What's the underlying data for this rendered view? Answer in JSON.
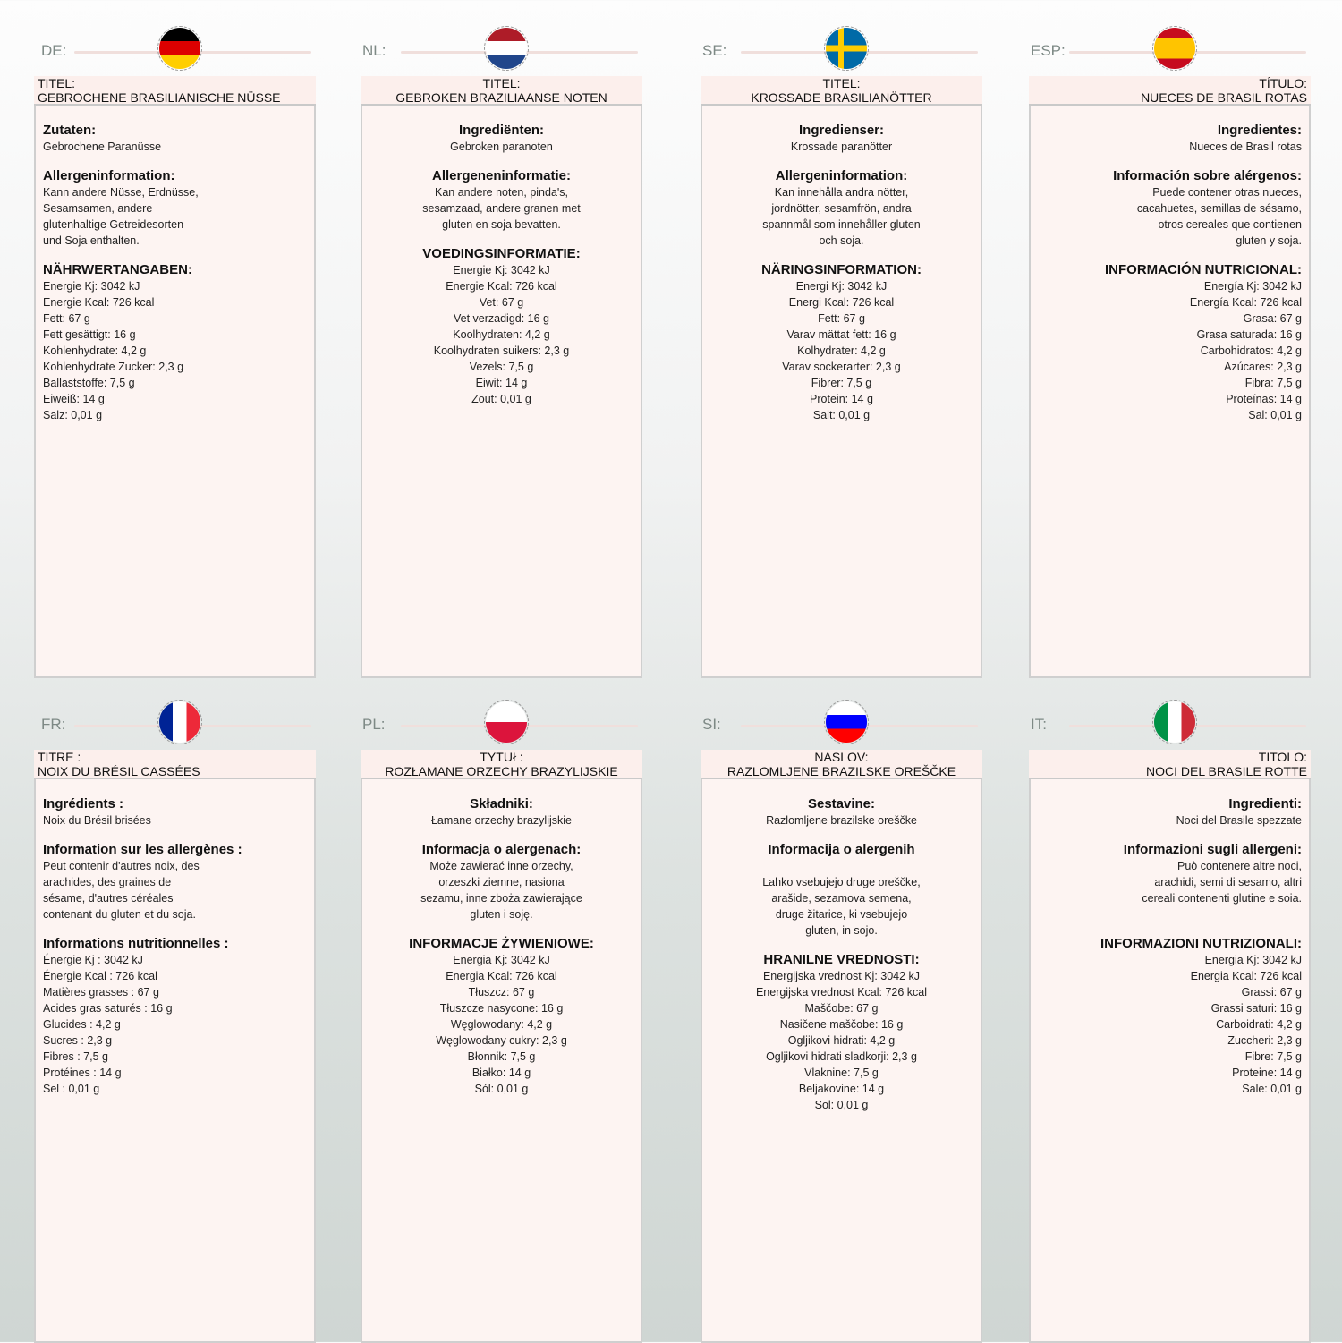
{
  "panels": [
    {
      "code": "DE:",
      "flag": "de",
      "align": "left",
      "title_label": "TITEL:",
      "title": "GEBROCHENE BRASILIANISCHE NÜSSE",
      "sections": [
        {
          "heading": "Zutaten:",
          "lines": [
            "Gebrochene Paranüsse"
          ]
        },
        {
          "heading": "Allergeninformation:",
          "lines": [
            "Kann andere Nüsse, Erdnüsse,",
            "Sesamsamen, andere",
            "glutenhaltige Getreidesorten",
            "und Soja enthalten."
          ]
        },
        {
          "heading": "NÄHRWERTANGABEN:",
          "lines": [
            "Energie Kj: 3042 kJ",
            "Energie Kcal: 726 kcal",
            "Fett: 67 g",
            "Fett gesättigt: 16 g",
            "Kohlenhydrate: 4,2 g",
            "Kohlenhydrate Zucker: 2,3 g",
            "Ballaststoffe: 7,5 g",
            "Eiweiß: 14 g",
            "Salz: 0,01 g"
          ]
        }
      ]
    },
    {
      "code": "NL:",
      "flag": "nl",
      "align": "center",
      "title_label": "TITEL:",
      "title": "GEBROKEN BRAZILIAANSE NOTEN",
      "sections": [
        {
          "heading": "Ingrediënten:",
          "lines": [
            "Gebroken paranoten"
          ]
        },
        {
          "heading": "Allergeneninformatie:",
          "lines": [
            "Kan andere noten, pinda's,",
            "sesamzaad, andere granen met",
            "gluten en soja bevatten."
          ]
        },
        {
          "heading": "VOEDINGSINFORMATIE:",
          "lines": [
            "Energie Kj: 3042 kJ",
            "Energie Kcal: 726 kcal",
            "Vet: 67 g",
            "Vet verzadigd: 16 g",
            "Koolhydraten: 4,2 g",
            "Koolhydraten suikers: 2,3 g",
            "Vezels: 7,5 g",
            "Eiwit: 14 g",
            "Zout: 0,01 g"
          ]
        }
      ]
    },
    {
      "code": "SE:",
      "flag": "se",
      "align": "center",
      "title_label": "TITEL:",
      "title": "KROSSADE BRASILIANÖTTER",
      "sections": [
        {
          "heading": "Ingredienser:",
          "lines": [
            "Krossade paranötter"
          ]
        },
        {
          "heading": "Allergeninformation:",
          "lines": [
            "Kan innehålla andra nötter,",
            "jordnötter, sesamfrön, andra",
            "spannmål som innehåller gluten",
            "och soja."
          ]
        },
        {
          "heading": "NÄRINGSINFORMATION:",
          "lines": [
            "Energi Kj: 3042 kJ",
            "Energi Kcal: 726 kcal",
            "Fett: 67 g",
            "Varav mättat fett: 16 g",
            "Kolhydrater: 4,2 g",
            "Varav sockerarter: 2,3 g",
            "Fibrer: 7,5 g",
            "Protein: 14 g",
            "Salt: 0,01 g"
          ]
        }
      ]
    },
    {
      "code": "ESP:",
      "flag": "es",
      "align": "right",
      "title_label": "TÍTULO:",
      "title": "NUECES DE BRASIL ROTAS",
      "sections": [
        {
          "heading": "Ingredientes:",
          "lines": [
            "Nueces de Brasil rotas"
          ]
        },
        {
          "heading": "Información sobre alérgenos:",
          "lines": [
            "Puede contener otras nueces,",
            "cacahuetes, semillas de sésamo,",
            "otros cereales que contienen",
            "gluten y soja."
          ]
        },
        {
          "heading": "INFORMACIÓN NUTRICIONAL:",
          "lines": [
            "Energía Kj: 3042 kJ",
            "Energía Kcal: 726 kcal",
            "Grasa: 67 g",
            "Grasa saturada: 16 g",
            "Carbohidratos: 4,2 g",
            "Azúcares: 2,3 g",
            "Fibra: 7,5 g",
            "Proteínas: 14 g",
            "Sal: 0,01 g"
          ]
        }
      ]
    },
    {
      "code": "FR:",
      "flag": "fr",
      "align": "left",
      "title_label": "TITRE :",
      "title": "NOIX DU BRÉSIL CASSÉES",
      "sections": [
        {
          "heading": "Ingrédients :",
          "lines": [
            "Noix du Brésil brisées"
          ]
        },
        {
          "heading": "Information sur les allergènes :",
          "lines": [
            "Peut contenir d'autres noix, des",
            "arachides, des graines de",
            "sésame, d'autres céréales",
            "contenant du gluten et du soja."
          ]
        },
        {
          "heading": "Informations nutritionnelles :",
          "lines": [
            "Énergie Kj : 3042 kJ",
            "Énergie Kcal : 726 kcal",
            "Matières grasses : 67 g",
            "Acides gras saturés : 16 g",
            "Glucides : 4,2 g",
            "Sucres : 2,3 g",
            "Fibres : 7,5 g",
            "Protéines : 14 g",
            "Sel : 0,01 g"
          ]
        }
      ]
    },
    {
      "code": "PL:",
      "flag": "pl",
      "align": "center",
      "title_label": "TYTUŁ:",
      "title": "ROZŁAMANE ORZECHY BRAZYLIJSKIE",
      "sections": [
        {
          "heading": "Składniki:",
          "lines": [
            "Łamane orzechy brazylijskie"
          ]
        },
        {
          "heading": "Informacja o alergenach:",
          "lines": [
            "Może zawierać inne orzechy,",
            "orzeszki ziemne, nasiona",
            "sezamu, inne zboża zawierające",
            "gluten i soję."
          ]
        },
        {
          "heading": "INFORMACJE ŻYWIENIOWE:",
          "lines": [
            "Energia Kj: 3042 kJ",
            "Energia Kcal: 726 kcal",
            "Tłuszcz: 67 g",
            "Tłuszcze nasycone: 16 g",
            "Węglowodany: 4,2 g",
            "Węglowodany cukry: 2,3 g",
            "Błonnik: 7,5 g",
            "Białko: 14 g",
            "Sól: 0,01 g"
          ]
        }
      ]
    },
    {
      "code": "SI:",
      "flag": "si",
      "align": "center",
      "title_label": "NASLOV:",
      "title": "RAZLOMLJENE BRAZILSKE OREŠČKE",
      "sections": [
        {
          "heading": "Sestavine:",
          "lines": [
            "Razlomljene brazilske oreščke"
          ]
        },
        {
          "heading": "Informacija o alergenih",
          "lines": [
            "",
            "Lahko vsebujejo druge oreščke,",
            "arašide, sezamova semena,",
            "druge žitarice, ki vsebujejo",
            "gluten, in sojo."
          ]
        },
        {
          "heading": "HRANILNE VREDNOSTI:",
          "lines": [
            "Energijska vrednost Kj: 3042 kJ",
            "Energijska vrednost Kcal: 726 kcal",
            "Maščobe: 67 g",
            "Nasičene maščobe: 16 g",
            "Ogljikovi hidrati: 4,2 g",
            "Ogljikovi hidrati sladkorji: 2,3 g",
            "Vlaknine: 7,5 g",
            "Beljakovine: 14 g",
            "Sol: 0,01 g"
          ]
        }
      ]
    },
    {
      "code": "IT:",
      "flag": "it",
      "align": "right",
      "title_label": "TITOLO:",
      "title": "NOCI DEL BRASILE ROTTE",
      "sections": [
        {
          "heading": "Ingredienti:",
          "lines": [
            "Noci del Brasile spezzate"
          ]
        },
        {
          "heading": "Informazioni sugli allergeni:",
          "lines": [
            "Può contenere altre noci,",
            "arachidi, semi di sesamo, altri",
            "cereali contenenti glutine e soia.",
            ""
          ]
        },
        {
          "heading": "INFORMAZIONI NUTRIZIONALI:",
          "lines": [
            "Energia Kj: 3042 kJ",
            "Energia Kcal: 726 kcal",
            "Grassi: 67 g",
            "Grassi saturi: 16 g",
            "Carboidrati: 4,2 g",
            "Zuccheri: 2,3 g",
            "Fibre: 7,5 g",
            "Proteine: 14 g",
            "Sale: 0,01 g"
          ]
        }
      ]
    }
  ]
}
